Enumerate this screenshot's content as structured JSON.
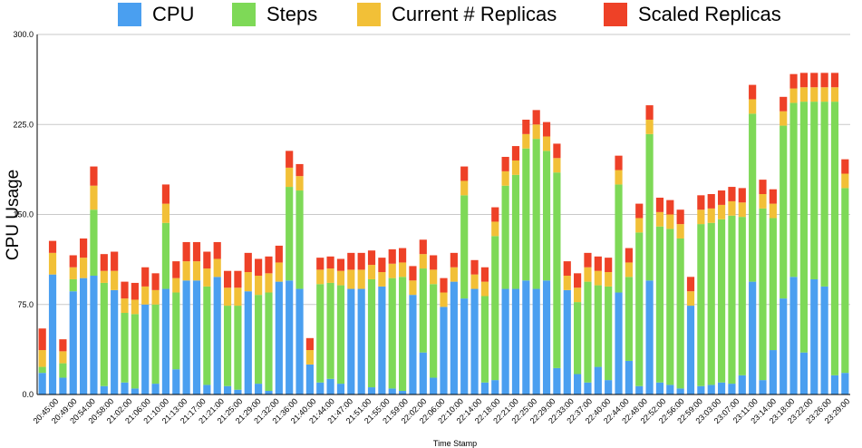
{
  "chart_data": {
    "type": "bar",
    "stacked": true,
    "xlabel": "Time Stamp",
    "ylabel": "CPU Usage",
    "ylim": [
      0,
      300
    ],
    "yticks": [
      "0.0",
      "75.0",
      "150.0",
      "225.0",
      "300.0"
    ],
    "grid": true,
    "legend_position": "top",
    "tick_labels": [
      "20:45:00",
      "20:49:00",
      "20:54:00",
      "20:58:00",
      "21:02:00",
      "21:06:00",
      "21:10:00",
      "21:13:00",
      "21:17:00",
      "21:21:00",
      "21:25:00",
      "21:29:00",
      "21:32:00",
      "21:36:00",
      "21:40:00",
      "21:44:00",
      "21:47:00",
      "21:51:00",
      "21:55:00",
      "21:59:00",
      "22:02:00",
      "22:06:00",
      "22:10:00",
      "22:14:00",
      "22:18:00",
      "22:21:00",
      "22:25:00",
      "22:29:00",
      "22:33:00",
      "22:37:00",
      "22:40:00",
      "22:44:00",
      "22:48:00",
      "22:52:00",
      "22:56:00",
      "22:59:00",
      "23:03:00",
      "23:07:00",
      "23:11:00",
      "23:14:00",
      "23:18:00",
      "23:22:00",
      "23:26:00",
      "23:29:00"
    ],
    "series": [
      {
        "name": "CPU",
        "color": "#4a9ff0",
        "values": [
          18,
          100,
          14,
          86,
          97,
          99,
          7,
          87,
          10,
          5,
          75,
          9,
          88,
          21,
          95,
          95,
          8,
          98,
          7,
          4,
          86,
          9,
          3,
          94,
          95,
          88,
          25,
          10,
          13,
          9,
          88,
          88,
          6,
          90,
          5,
          3,
          83,
          35,
          14,
          73,
          94,
          80,
          88,
          10,
          12,
          88,
          88,
          95,
          88,
          95,
          22,
          87,
          17,
          10,
          23,
          12,
          85,
          28,
          7,
          95,
          10,
          8,
          5,
          74,
          7,
          8,
          10,
          9,
          16,
          94,
          12,
          37,
          80,
          98,
          35,
          96,
          90,
          16,
          18
        ]
      },
      {
        "name": "Steps",
        "color": "#7ed957",
        "values": [
          5,
          0,
          12,
          10,
          0,
          55,
          86,
          0,
          58,
          62,
          0,
          66,
          55,
          64,
          0,
          0,
          82,
          0,
          67,
          70,
          0,
          74,
          82,
          0,
          78,
          82,
          0,
          82,
          80,
          82,
          0,
          0,
          90,
          0,
          92,
          95,
          0,
          70,
          78,
          0,
          0,
          86,
          0,
          72,
          120,
          86,
          95,
          110,
          125,
          108,
          163,
          0,
          60,
          84,
          68,
          78,
          90,
          70,
          128,
          122,
          130,
          130,
          125,
          0,
          135,
          135,
          136,
          140,
          132,
          140,
          143,
          110,
          144,
          145,
          209,
          148,
          154,
          228,
          154
        ]
      },
      {
        "name": "Current # Replicas",
        "color": "#f2c037",
        "values": [
          14,
          18,
          10,
          10,
          17,
          20,
          10,
          16,
          12,
          12,
          15,
          12,
          16,
          12,
          16,
          16,
          15,
          15,
          15,
          15,
          16,
          16,
          16,
          16,
          16,
          12,
          12,
          12,
          12,
          12,
          16,
          16,
          12,
          12,
          12,
          12,
          12,
          12,
          12,
          12,
          12,
          12,
          12,
          12,
          12,
          12,
          12,
          12,
          12,
          12,
          12,
          12,
          12,
          12,
          12,
          12,
          12,
          12,
          12,
          12,
          12,
          12,
          12,
          12,
          12,
          12,
          12,
          12,
          12,
          12,
          12,
          12,
          12,
          12,
          12,
          12,
          12,
          12,
          12
        ]
      },
      {
        "name": "Scaled Replicas",
        "color": "#ee4127",
        "values": [
          18,
          10,
          10,
          10,
          16,
          16,
          14,
          16,
          14,
          14,
          16,
          14,
          16,
          14,
          16,
          16,
          14,
          14,
          14,
          14,
          16,
          14,
          14,
          14,
          14,
          10,
          10,
          10,
          10,
          10,
          14,
          14,
          12,
          12,
          12,
          12,
          12,
          12,
          12,
          12,
          12,
          12,
          12,
          12,
          12,
          12,
          12,
          12,
          12,
          12,
          12,
          12,
          12,
          12,
          12,
          12,
          12,
          12,
          12,
          12,
          12,
          12,
          12,
          12,
          12,
          12,
          12,
          12,
          12,
          12,
          12,
          12,
          12,
          12,
          12,
          12,
          12,
          12,
          12
        ]
      }
    ]
  }
}
